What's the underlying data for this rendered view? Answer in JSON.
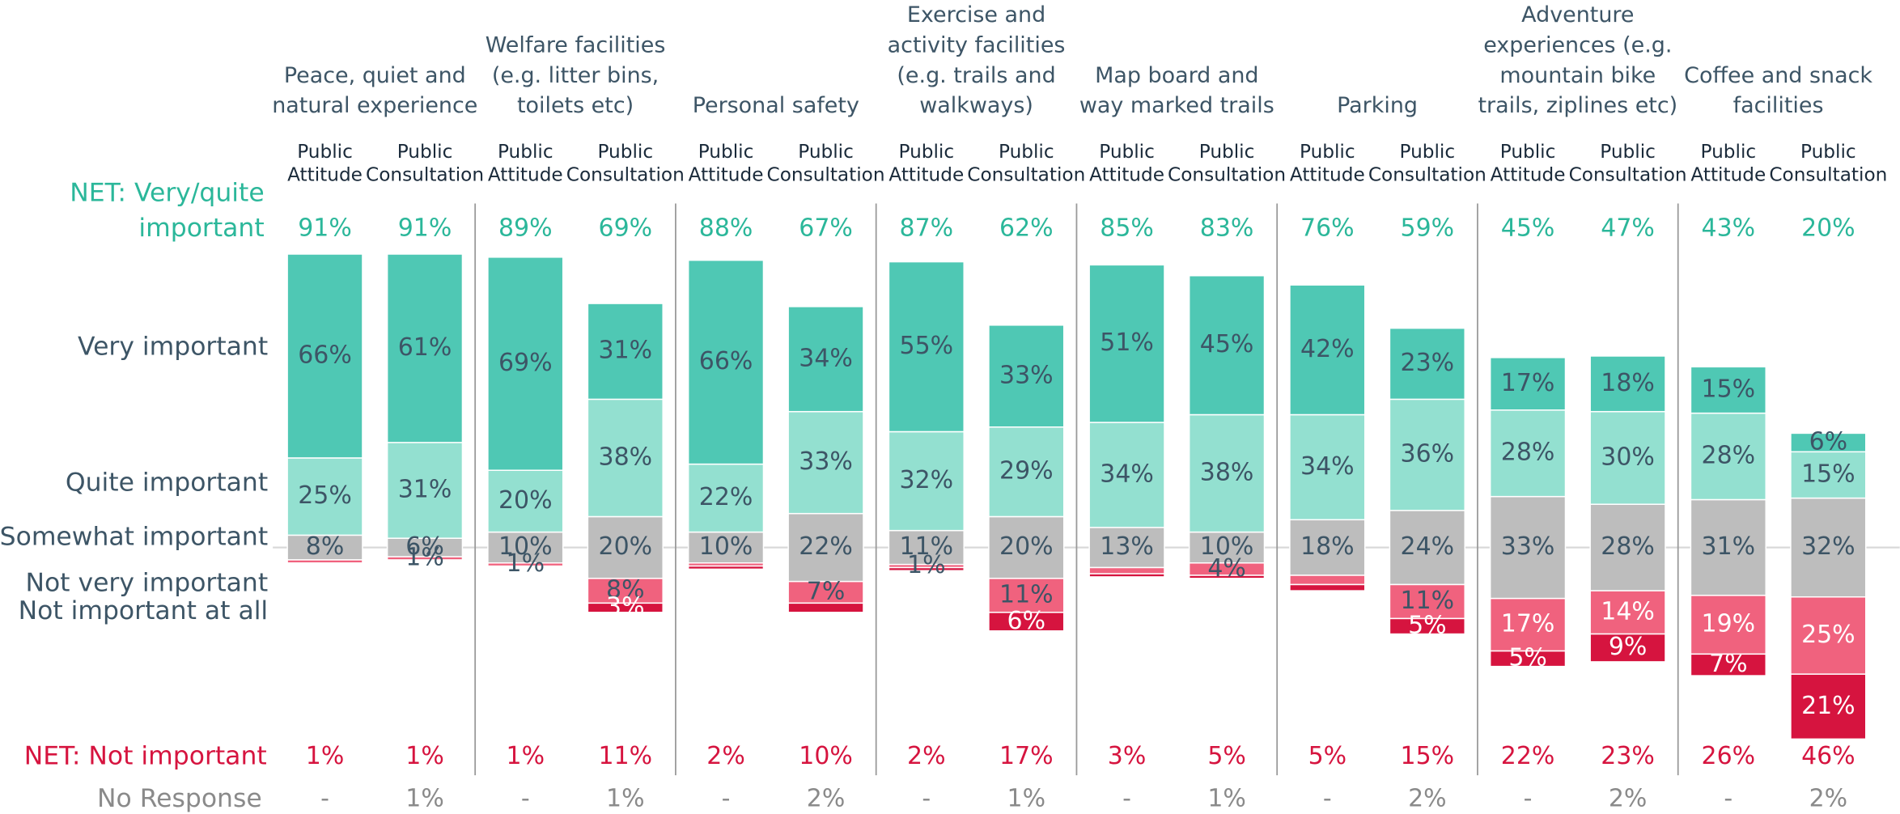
{
  "chart_data": {
    "type": "diverging_stacked_bar",
    "groups": [
      [
        "Peace, quiet and",
        "natural experience"
      ],
      [
        "Welfare facilities",
        "(e.g. litter bins,",
        "toilets etc)"
      ],
      [
        "Personal safety"
      ],
      [
        "Exercise and",
        "activity facilities",
        "(e.g. trails and",
        "walkways)"
      ],
      [
        "Map board and",
        "way marked trails"
      ],
      [
        "Parking"
      ],
      [
        "Adventure",
        "experiences (e.g.",
        "mountain bike",
        "trails, ziplines etc)"
      ],
      [
        "Coffee and snack",
        "facilities"
      ]
    ],
    "bar_labels": [
      [
        "Public",
        "Attitude"
      ],
      [
        "Public",
        "Consultation"
      ]
    ],
    "net_important_title": [
      "NET: Very/quite",
      "important"
    ],
    "net_important": [
      91,
      91,
      89,
      69,
      88,
      67,
      87,
      62,
      85,
      83,
      76,
      59,
      45,
      47,
      43,
      20
    ],
    "net_important_labels": [
      "91%",
      "91%",
      "89%",
      "69%",
      "88%",
      "67%",
      "87%",
      "62%",
      "85%",
      "83%",
      "76%",
      "59%",
      "45%",
      "47%",
      "43%",
      "20%"
    ],
    "net_not_important_title": "NET: Not important",
    "net_not_important": [
      1,
      1,
      1,
      11,
      2,
      10,
      2,
      17,
      3,
      5,
      5,
      15,
      22,
      23,
      26,
      46
    ],
    "net_not_important_labels": [
      "1%",
      "1%",
      "1%",
      "11%",
      "2%",
      "10%",
      "2%",
      "17%",
      "3%",
      "5%",
      "5%",
      "15%",
      "22%",
      "23%",
      "26%",
      "46%"
    ],
    "no_response_title": "No Response",
    "no_response": [
      null,
      1,
      null,
      1,
      null,
      2,
      null,
      1,
      null,
      1,
      null,
      2,
      null,
      2,
      null,
      2
    ],
    "no_response_labels": [
      "-",
      "1%",
      "-",
      "1%",
      "-",
      "2%",
      "-",
      "1%",
      "-",
      "1%",
      "-",
      "2%",
      "-",
      "2%",
      "-",
      "2%"
    ],
    "series": [
      {
        "name": "Very important",
        "color": "#4fc8b4",
        "side": "up",
        "values": [
          66,
          61,
          69,
          31,
          66,
          34,
          55,
          33,
          51,
          45,
          42,
          23,
          17,
          18,
          15,
          6
        ],
        "value_labels": [
          "66%",
          "61%",
          "69%",
          "31%",
          "66%",
          "34%",
          "55%",
          "33%",
          "51%",
          "45%",
          "42%",
          "23%",
          "17%",
          "18%",
          "15%",
          "6%"
        ]
      },
      {
        "name": "Quite important",
        "color": "#93e0d0",
        "side": "up",
        "values": [
          25,
          31,
          20,
          38,
          22,
          33,
          32,
          29,
          34,
          38,
          34,
          36,
          28,
          30,
          28,
          15
        ],
        "value_labels": [
          "25%",
          "31%",
          "20%",
          "38%",
          "22%",
          "33%",
          "32%",
          "29%",
          "34%",
          "38%",
          "34%",
          "36%",
          "28%",
          "30%",
          "28%",
          "15%"
        ]
      },
      {
        "name": "Somewhat important",
        "color": "#bdbdbd",
        "side": "center",
        "values": [
          8,
          6,
          10,
          20,
          10,
          22,
          11,
          20,
          13,
          10,
          18,
          24,
          33,
          28,
          31,
          32
        ],
        "value_labels": [
          "8%",
          "6%",
          "10%",
          "20%",
          "10%",
          "22%",
          "11%",
          "20%",
          "13%",
          "10%",
          "18%",
          "24%",
          "33%",
          "28%",
          "31%",
          "32%"
        ]
      },
      {
        "name": "Not very important",
        "color": "#f0627e",
        "side": "down",
        "values": [
          1,
          1,
          1,
          8,
          1,
          7,
          1,
          11,
          2,
          4,
          3,
          11,
          17,
          14,
          19,
          25
        ],
        "value_labels": [
          null,
          "1%",
          "1%",
          "8%",
          null,
          "7%",
          "1%",
          "11%",
          null,
          "4%",
          null,
          "11%",
          "17%",
          "14%",
          "19%",
          "25%"
        ]
      },
      {
        "name": "Not important at all",
        "color": "#d6143f",
        "side": "down",
        "values": [
          0,
          0,
          0,
          3,
          1,
          3,
          1,
          6,
          1,
          1,
          2,
          5,
          5,
          9,
          7,
          21
        ],
        "value_labels": [
          null,
          null,
          null,
          "3%",
          null,
          null,
          null,
          "6%",
          null,
          null,
          null,
          "5%",
          "5%",
          "9%",
          "7%",
          "21%"
        ]
      }
    ]
  }
}
